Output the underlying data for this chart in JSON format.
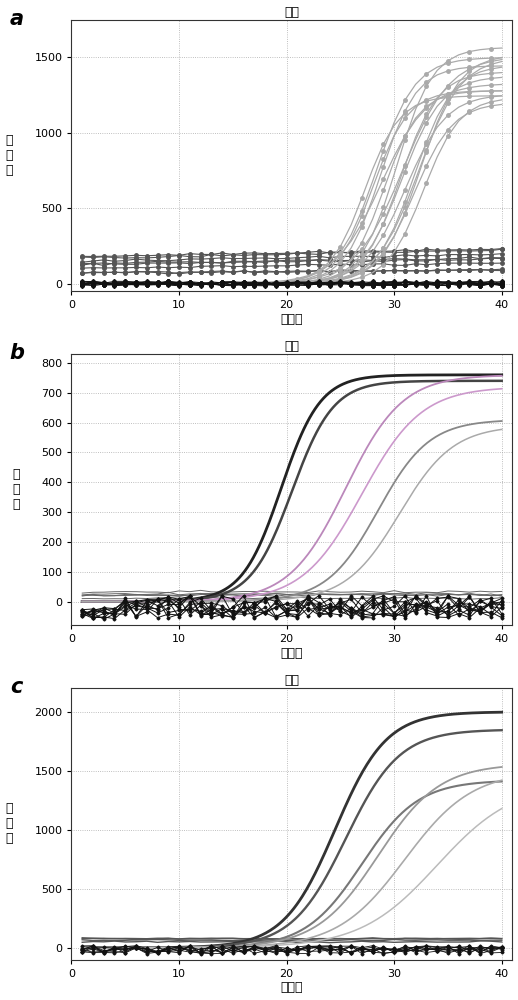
{
  "title": "扩增",
  "xlabel": "循环数",
  "ylabel": "荧\n光\n値",
  "background_color": "#ffffff",
  "grid_color": "#aaaaaa",
  "panels": [
    {
      "label": "a",
      "ylim": [
        -50,
        1750
      ],
      "yticks": [
        0,
        500,
        1000,
        1500
      ],
      "xlim": [
        0,
        41
      ],
      "xticks": [
        0,
        10,
        20,
        30,
        40
      ],
      "sigmoid_seed": 10,
      "sigmoid_count": 16,
      "sigmoid_L_min": 1200,
      "sigmoid_L_max": 1600,
      "sigmoid_k_min": 0.45,
      "sigmoid_k_max": 0.65,
      "sigmoid_x0_min": 27,
      "sigmoid_x0_max": 33,
      "sigmoid_color": "#aaaaaa",
      "sigmoid_lw": 0.9,
      "sigmoid_marker": "o",
      "sigmoid_ms": 2.5,
      "sigmoid_markevery": 2,
      "flat_seed": 20,
      "flat_count": 8,
      "flat_y_min": 50,
      "flat_y_max": 180,
      "flat_color": "#555555",
      "flat_lw": 0.8,
      "flat_marker": "o",
      "flat_ms": 2.5,
      "noise_seed": 30,
      "noise_count": 10,
      "noise_y_min": -15,
      "noise_y_max": 15,
      "noise_color": "#111111",
      "noise_lw": 0.7,
      "noise_marker": "D",
      "noise_ms": 2.0
    },
    {
      "label": "b",
      "ylim": [
        -80,
        830
      ],
      "yticks": [
        0,
        100,
        200,
        300,
        400,
        500,
        600,
        700,
        800
      ],
      "xlim": [
        0,
        41
      ],
      "xticks": [
        0,
        10,
        20,
        30,
        40
      ],
      "sigmoid_curves": [
        {
          "L": 760,
          "k": 0.55,
          "x0": 19.5,
          "color": "#222222",
          "lw": 2.0
        },
        {
          "L": 740,
          "k": 0.52,
          "x0": 20.5,
          "color": "#444444",
          "lw": 1.8
        },
        {
          "L": 760,
          "k": 0.38,
          "x0": 25.5,
          "color": "#bb88bb",
          "lw": 1.3
        },
        {
          "L": 720,
          "k": 0.36,
          "x0": 27.0,
          "color": "#cc99cc",
          "lw": 1.2
        },
        {
          "L": 610,
          "k": 0.42,
          "x0": 28.5,
          "color": "#888888",
          "lw": 1.3
        },
        {
          "L": 590,
          "k": 0.4,
          "x0": 30.5,
          "color": "#aaaaaa",
          "lw": 1.1
        }
      ],
      "flat_seed": 50,
      "flat_count": 5,
      "flat_y_min": 10,
      "flat_y_max": 35,
      "flat_color": "#666666",
      "flat_lw": 0.7,
      "noise_seed": 60,
      "noise_count": 10,
      "noise_y_min": -55,
      "noise_y_max": 20,
      "noise_color": "#111111",
      "noise_lw": 0.7,
      "noise_marker": "D",
      "noise_ms": 1.5
    },
    {
      "label": "c",
      "ylim": [
        -100,
        2200
      ],
      "yticks": [
        0,
        500,
        1000,
        1500,
        2000
      ],
      "xlim": [
        0,
        41
      ],
      "xticks": [
        0,
        10,
        20,
        30,
        40
      ],
      "sigmoid_curves": [
        {
          "L": 2000,
          "k": 0.42,
          "x0": 24.5,
          "color": "#333333",
          "lw": 2.0
        },
        {
          "L": 1850,
          "k": 0.4,
          "x0": 25.5,
          "color": "#555555",
          "lw": 1.7
        },
        {
          "L": 1420,
          "k": 0.38,
          "x0": 27.0,
          "color": "#777777",
          "lw": 1.5
        },
        {
          "L": 1560,
          "k": 0.35,
          "x0": 28.5,
          "color": "#999999",
          "lw": 1.3
        },
        {
          "L": 1500,
          "k": 0.32,
          "x0": 31.0,
          "color": "#aaaaaa",
          "lw": 1.2
        },
        {
          "L": 1400,
          "k": 0.28,
          "x0": 34.0,
          "color": "#bbbbbb",
          "lw": 1.1
        }
      ],
      "flat_seed": 70,
      "flat_count": 4,
      "flat_y_min": 50,
      "flat_y_max": 80,
      "flat_color": "#555555",
      "flat_lw": 1.0,
      "noise_seed": 80,
      "noise_count": 8,
      "noise_y_min": -50,
      "noise_y_max": 20,
      "noise_color": "#111111",
      "noise_lw": 0.6,
      "noise_marker": "D",
      "noise_ms": 1.5
    }
  ]
}
